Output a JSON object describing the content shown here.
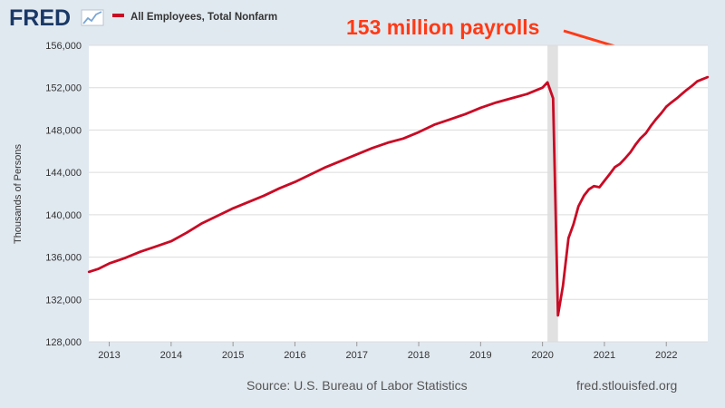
{
  "header": {
    "logo_text": "FRED",
    "logo_icon": "line-graph-icon"
  },
  "colors": {
    "background": "#e1e9f0",
    "plot_background": "#ffffff",
    "series": "#c90a24",
    "annotation": "#ff3a16",
    "recession": "#e1e1e1",
    "grid": "#dcdcdc"
  },
  "footer": {
    "source": "Source: U.S. Bureau of Labor Statistics",
    "site": "fred.stlouisfed.org"
  },
  "chart_data": {
    "type": "line",
    "title": "",
    "xlabel": "",
    "ylabel": "Thousands of Persons",
    "ylim": [
      128000,
      156000
    ],
    "xlim": [
      2012.67,
      2022.67
    ],
    "yticks": [
      "128,000",
      "132,000",
      "136,000",
      "140,000",
      "144,000",
      "148,000",
      "152,000",
      "156,000"
    ],
    "ytick_values": [
      128000,
      132000,
      136000,
      140000,
      144000,
      148000,
      152000,
      156000
    ],
    "xticks": [
      "2013",
      "2014",
      "2015",
      "2016",
      "2017",
      "2018",
      "2019",
      "2020",
      "2021",
      "2022"
    ],
    "xtick_values": [
      2013,
      2014,
      2015,
      2016,
      2017,
      2018,
      2019,
      2020,
      2021,
      2022
    ],
    "grid": true,
    "legend_position": "top-left",
    "recession_shading": [
      [
        2020.08,
        2020.25
      ]
    ],
    "annotation": {
      "text": "153 million payrolls",
      "arrow_target": {
        "x": 2022.5,
        "y": 152700
      }
    },
    "series": [
      {
        "name": "All Employees, Total Nonfarm",
        "x": [
          2012.67,
          2012.83,
          2013.0,
          2013.25,
          2013.5,
          2013.75,
          2014.0,
          2014.25,
          2014.5,
          2014.75,
          2015.0,
          2015.25,
          2015.5,
          2015.75,
          2016.0,
          2016.25,
          2016.5,
          2016.75,
          2017.0,
          2017.25,
          2017.5,
          2017.75,
          2018.0,
          2018.25,
          2018.5,
          2018.75,
          2019.0,
          2019.25,
          2019.5,
          2019.75,
          2020.0,
          2020.08,
          2020.17,
          2020.25,
          2020.33,
          2020.42,
          2020.5,
          2020.58,
          2020.67,
          2020.75,
          2020.83,
          2020.92,
          2021.0,
          2021.08,
          2021.17,
          2021.25,
          2021.33,
          2021.42,
          2021.5,
          2021.58,
          2021.67,
          2021.75,
          2021.83,
          2021.92,
          2022.0,
          2022.08,
          2022.17,
          2022.25,
          2022.33,
          2022.42,
          2022.5,
          2022.58,
          2022.67
        ],
        "values": [
          134600,
          134900,
          135400,
          135900,
          136500,
          137000,
          137500,
          138300,
          139200,
          139900,
          140600,
          141200,
          141800,
          142500,
          143100,
          143800,
          144500,
          145100,
          145700,
          146300,
          146800,
          147200,
          147800,
          148500,
          149000,
          149500,
          150100,
          150600,
          151000,
          151400,
          152000,
          152500,
          151000,
          130500,
          133300,
          137800,
          139100,
          140800,
          141800,
          142400,
          142700,
          142600,
          143200,
          143800,
          144500,
          144800,
          145300,
          145900,
          146600,
          147200,
          147700,
          148400,
          149000,
          149600,
          150200,
          150600,
          151000,
          151400,
          151800,
          152200,
          152600,
          152800,
          153000
        ]
      }
    ]
  }
}
